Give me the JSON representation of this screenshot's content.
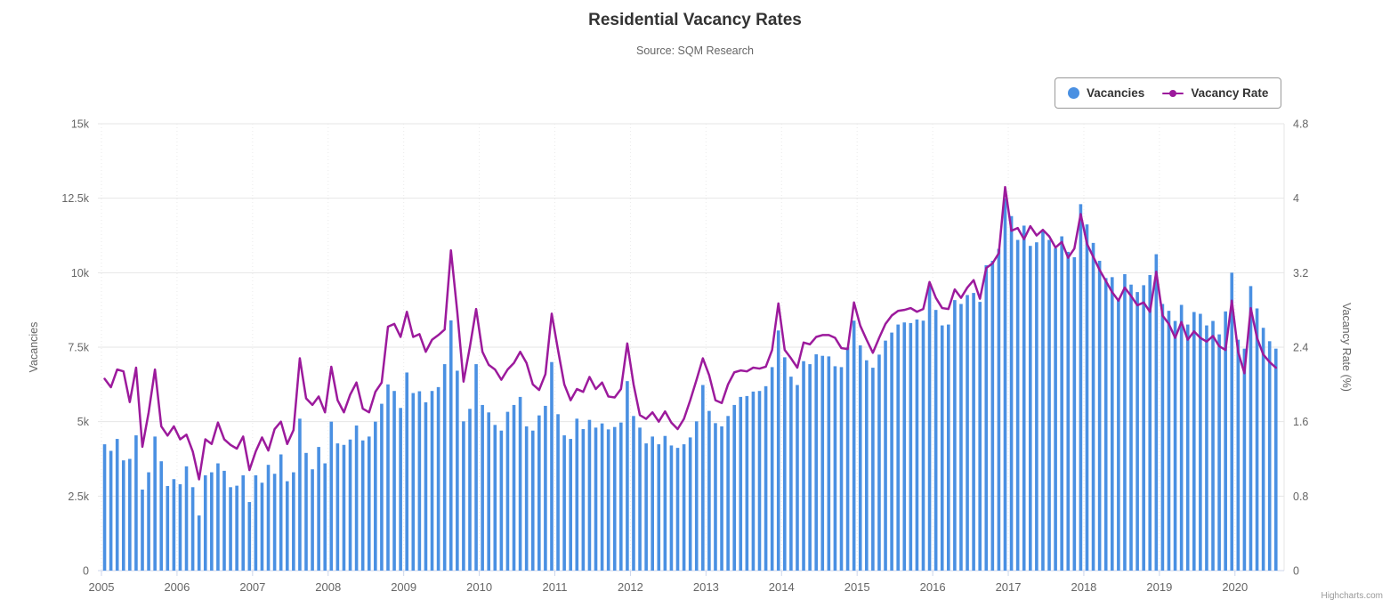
{
  "header": {
    "title": "Residential Vacancy Rates",
    "subtitle": "Source: SQM Research"
  },
  "credit": "Highcharts.com",
  "colors": {
    "bars": "#4a90e2",
    "line": "#9c1a9c",
    "grid": "#e6e6e6",
    "axis_line": "#ccd6eb",
    "label": "#666666",
    "title": "#333333",
    "legend_border": "#999999"
  },
  "chart_data": {
    "type": "column+line",
    "x_range": [
      "2005-01",
      "2020-07"
    ],
    "x_interval": "monthly",
    "x_tick_labels": [
      "2005",
      "2006",
      "2007",
      "2008",
      "2009",
      "2010",
      "2011",
      "2012",
      "2013",
      "2014",
      "2015",
      "2016",
      "2017",
      "2018",
      "2019",
      "2020"
    ],
    "y_axis_left": {
      "title": "Vacancies",
      "tick_labels": [
        "0",
        "2.5k",
        "5k",
        "7.5k",
        "10k",
        "12.5k",
        "15k"
      ],
      "min": 0,
      "max": 15000
    },
    "y_axis_right": {
      "title": "Vacancy Rate (%)",
      "tick_labels": [
        "0",
        "0.8",
        "1.6",
        "2.4",
        "3.2",
        "4",
        "4.8"
      ],
      "min": 0,
      "max": 4.8
    },
    "grid": "horizontal solid, faint dashed vertical at year ticks",
    "legend_position": "top-right",
    "series": [
      {
        "name": "Vacancies",
        "type": "column",
        "axis": "left",
        "values": [
          4240,
          4020,
          4420,
          3700,
          3750,
          4540,
          2720,
          3300,
          4500,
          3670,
          2840,
          3070,
          2900,
          3500,
          2800,
          1850,
          3200,
          3300,
          3600,
          3350,
          2800,
          2850,
          3200,
          2300,
          3200,
          2950,
          3550,
          3250,
          3900,
          3000,
          3300,
          5100,
          3950,
          3400,
          4150,
          3600,
          5000,
          4270,
          4220,
          4400,
          4870,
          4370,
          4500,
          5000,
          5600,
          6250,
          6030,
          5460,
          6650,
          5960,
          6020,
          5650,
          6030,
          6160,
          6930,
          8400,
          6710,
          5010,
          5430,
          6930,
          5560,
          5310,
          4890,
          4700,
          5330,
          5560,
          5830,
          4840,
          4700,
          5210,
          5530,
          7000,
          5250,
          4540,
          4420,
          5100,
          4750,
          5060,
          4800,
          4940,
          4740,
          4820,
          4970,
          6360,
          5190,
          4800,
          4270,
          4500,
          4240,
          4520,
          4200,
          4120,
          4240,
          4470,
          5010,
          6230,
          5360,
          4950,
          4840,
          5190,
          5560,
          5830,
          5860,
          6010,
          6030,
          6190,
          6830,
          8060,
          7160,
          6510,
          6230,
          7030,
          6930,
          7260,
          7210,
          7190,
          6860,
          6830,
          7490,
          8390,
          7560,
          7060,
          6810,
          7250,
          7720,
          7990,
          8260,
          8330,
          8310,
          8430,
          8390,
          9650,
          8750,
          8230,
          8260,
          9080,
          8950,
          9250,
          9320,
          9020,
          10250,
          10400,
          10800,
          12500,
          11900,
          11100,
          11580,
          10900,
          11020,
          11420,
          11100,
          10820,
          11220,
          10700,
          10520,
          12300,
          11620,
          11000,
          10400,
          9820,
          9850,
          9120,
          9950,
          9600,
          9350,
          9580,
          9920,
          10620,
          8950,
          8720,
          8380,
          8920,
          8260,
          8680,
          8620,
          8230,
          8380,
          7930,
          8700,
          10000,
          7750,
          7450,
          9550,
          8800,
          8150,
          7700,
          7450
        ]
      },
      {
        "name": "Vacancy Rate",
        "type": "line",
        "axis": "right",
        "values": [
          2.06,
          1.97,
          2.16,
          2.14,
          1.81,
          2.18,
          1.33,
          1.7,
          2.16,
          1.55,
          1.45,
          1.55,
          1.41,
          1.46,
          1.28,
          0.98,
          1.41,
          1.36,
          1.59,
          1.41,
          1.35,
          1.31,
          1.44,
          1.08,
          1.28,
          1.43,
          1.29,
          1.52,
          1.6,
          1.36,
          1.51,
          2.28,
          1.85,
          1.78,
          1.87,
          1.7,
          2.19,
          1.83,
          1.7,
          1.89,
          2.02,
          1.74,
          1.7,
          1.92,
          2.02,
          2.62,
          2.65,
          2.51,
          2.78,
          2.51,
          2.54,
          2.35,
          2.48,
          2.53,
          2.59,
          3.44,
          2.78,
          2.03,
          2.4,
          2.81,
          2.35,
          2.21,
          2.16,
          2.05,
          2.16,
          2.23,
          2.35,
          2.23,
          2.0,
          1.94,
          2.11,
          2.76,
          2.37,
          2.0,
          1.83,
          1.95,
          1.92,
          2.08,
          1.95,
          2.02,
          1.87,
          1.86,
          1.95,
          2.44,
          2.0,
          1.67,
          1.63,
          1.7,
          1.6,
          1.71,
          1.59,
          1.52,
          1.63,
          1.83,
          2.05,
          2.28,
          2.1,
          1.83,
          1.8,
          2.0,
          2.13,
          2.15,
          2.14,
          2.18,
          2.17,
          2.19,
          2.37,
          2.87,
          2.37,
          2.28,
          2.18,
          2.45,
          2.43,
          2.51,
          2.53,
          2.53,
          2.5,
          2.39,
          2.38,
          2.88,
          2.63,
          2.48,
          2.34,
          2.5,
          2.65,
          2.74,
          2.79,
          2.8,
          2.82,
          2.78,
          2.81,
          3.1,
          2.93,
          2.82,
          2.81,
          3.02,
          2.93,
          3.04,
          3.12,
          2.92,
          3.25,
          3.3,
          3.41,
          4.12,
          3.65,
          3.68,
          3.56,
          3.7,
          3.6,
          3.66,
          3.59,
          3.47,
          3.53,
          3.36,
          3.46,
          3.83,
          3.51,
          3.37,
          3.23,
          3.11,
          2.99,
          2.9,
          3.04,
          2.95,
          2.85,
          2.88,
          2.78,
          3.21,
          2.74,
          2.65,
          2.5,
          2.67,
          2.48,
          2.57,
          2.5,
          2.46,
          2.52,
          2.41,
          2.37,
          2.9,
          2.35,
          2.12,
          2.82,
          2.5,
          2.32,
          2.24,
          2.18
        ]
      }
    ]
  }
}
